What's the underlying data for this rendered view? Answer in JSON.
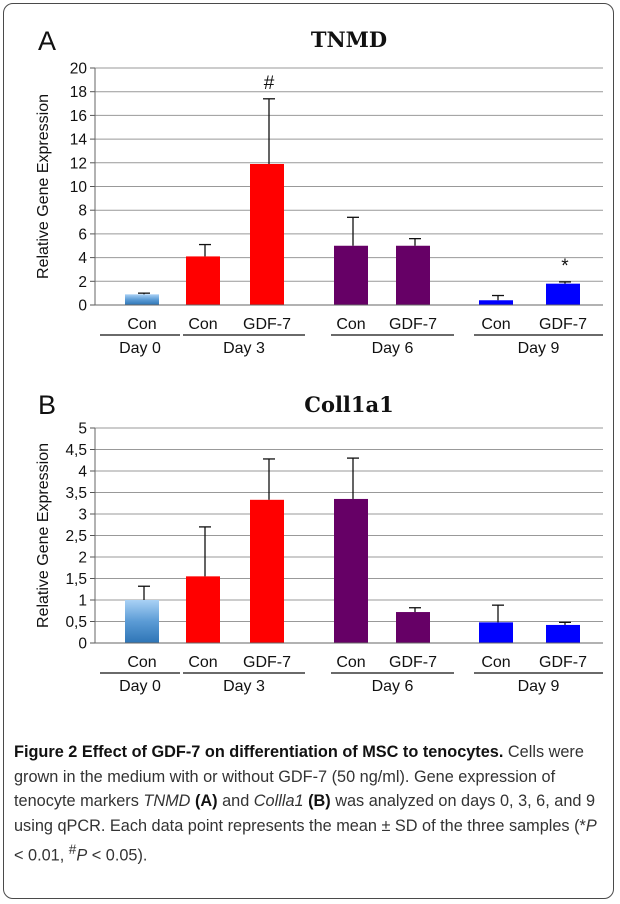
{
  "figure": {
    "panels": [
      {
        "letter": "A",
        "title": "TNMD"
      },
      {
        "letter": "B",
        "title": "Coll1a1"
      }
    ]
  },
  "colors": {
    "day0": "#6fa8dc",
    "day3": "#ff0000",
    "day6": "#660066",
    "day9": "#0000ff"
  },
  "chart_data": [
    {
      "type": "bar",
      "title": "TNMD",
      "ylabel": "Relative Gene Expression",
      "ylim": [
        0,
        20
      ],
      "yticks": [
        "0",
        "2",
        "4",
        "6",
        "8",
        "10",
        "12",
        "14",
        "16",
        "18",
        "20"
      ],
      "grid": true,
      "categories": [
        "Con",
        "Con",
        "GDF-7",
        "Con",
        "GDF-7",
        "Con",
        "GDF-7"
      ],
      "groups": [
        "Day 0",
        "Day 3",
        "Day 6",
        "Day 9"
      ],
      "group_of": [
        0,
        1,
        1,
        2,
        2,
        3,
        3
      ],
      "values": [
        0.9,
        4.1,
        11.9,
        5.0,
        5.0,
        0.4,
        1.8
      ],
      "errors": [
        0.1,
        1.0,
        5.5,
        2.4,
        0.6,
        0.4,
        0.15
      ],
      "annotations": [
        "",
        "",
        "#",
        "",
        "",
        "",
        "*"
      ]
    },
    {
      "type": "bar",
      "title": "Coll1a1",
      "ylabel": "Relative Gene Expression",
      "ylim": [
        0,
        5
      ],
      "yticks": [
        "0",
        "0,5",
        "1",
        "1,5",
        "2",
        "2,5",
        "3",
        "3,5",
        "4",
        "4,5",
        "5"
      ],
      "grid": true,
      "categories": [
        "Con",
        "Con",
        "GDF-7",
        "Con",
        "GDF-7",
        "Con",
        "GDF-7"
      ],
      "groups": [
        "Day 0",
        "Day 3",
        "Day 6",
        "Day 9"
      ],
      "group_of": [
        0,
        1,
        1,
        2,
        2,
        3,
        3
      ],
      "values": [
        1.0,
        1.55,
        3.33,
        3.35,
        0.72,
        0.48,
        0.42
      ],
      "errors": [
        0.32,
        1.15,
        0.95,
        0.95,
        0.1,
        0.4,
        0.06
      ],
      "annotations": [
        "",
        "",
        "",
        "",
        "",
        "",
        ""
      ]
    }
  ],
  "caption": {
    "label": "Figure 2 Effect of GDF-7 on differentiation of MSC to tenocytes.",
    "s1": " Cells were grown in the medium with or without GDF-7 (50 ng/ml). Gene expression of tenocyte markers ",
    "gene1": "TNMD",
    "ref_a": "(A)",
    "s2": " and ",
    "gene2": "Collla1",
    "ref_b": "(B)",
    "s3": " was analyzed on days 0, 3, 6, and 9 using qPCR. Each data point represents the mean ± SD of the three samples (*",
    "p1": "P",
    "s4": " < 0.01, ",
    "hash": "#",
    "p2": "P",
    "s5": " < 0.05)."
  }
}
